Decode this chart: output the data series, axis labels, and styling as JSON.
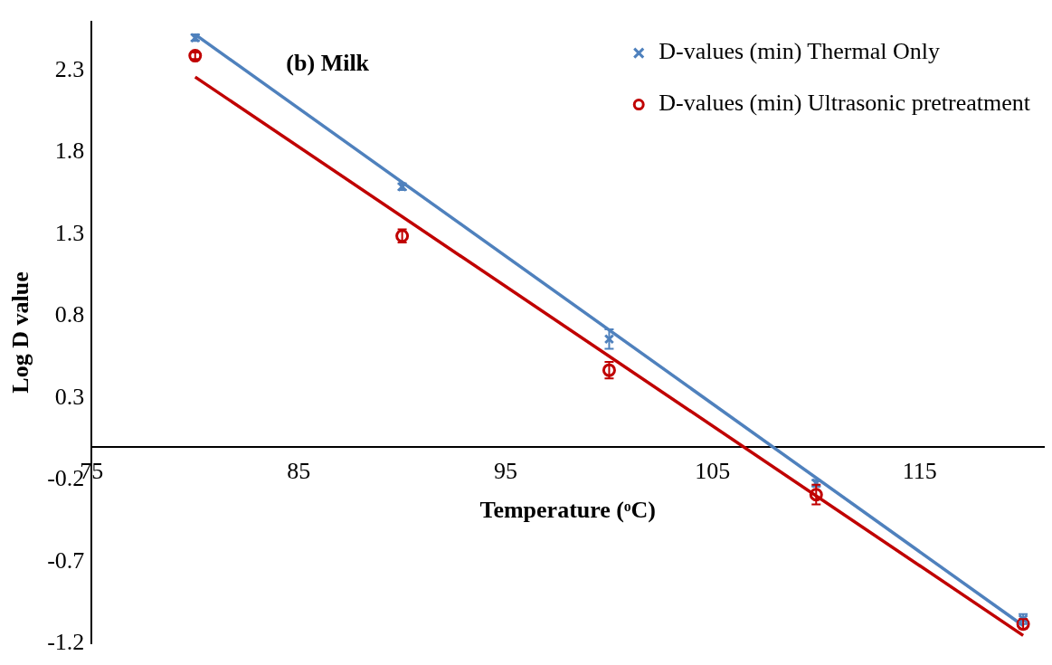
{
  "chart_data": {
    "type": "scatter",
    "xlabel": "Temperature (ᵒC)",
    "ylabel": "Log D value",
    "annotations": [
      "(b) Milk"
    ],
    "xlim": [
      75,
      121
    ],
    "xticks": [
      75,
      85,
      95,
      105,
      115
    ],
    "ylim": [
      -1.2,
      2.6
    ],
    "yticks": [
      -1.2,
      -0.7,
      -0.2,
      0.3,
      0.8,
      1.3,
      1.8,
      2.3
    ],
    "grid": false,
    "legend": "top right",
    "series": [
      {
        "name": "D-values (min) Thermal Only",
        "color": "#4f81bd",
        "marker": "cross",
        "x": [
          80,
          90,
          100,
          110,
          120
        ],
        "values": [
          2.5,
          1.59,
          0.66,
          -0.22,
          -1.05
        ],
        "errors": [
          0.02,
          0.02,
          0.06,
          0.02,
          0.03
        ]
      },
      {
        "name": "D-values (min) Ultrasonic pretreatment",
        "color": "#c00000",
        "marker": "circle",
        "x": [
          80,
          90,
          100,
          110,
          120
        ],
        "values": [
          2.39,
          1.29,
          0.47,
          -0.29,
          -1.08
        ],
        "errors": [
          0.02,
          0.04,
          0.05,
          0.06,
          0.03
        ]
      },
      {
        "type": "line",
        "color": "#4f81bd",
        "x": [
          80,
          120
        ],
        "values": [
          2.52,
          -1.09
        ]
      },
      {
        "type": "line",
        "color": "#c00000",
        "x": [
          80,
          120
        ],
        "values": [
          2.26,
          -1.15
        ]
      }
    ]
  }
}
